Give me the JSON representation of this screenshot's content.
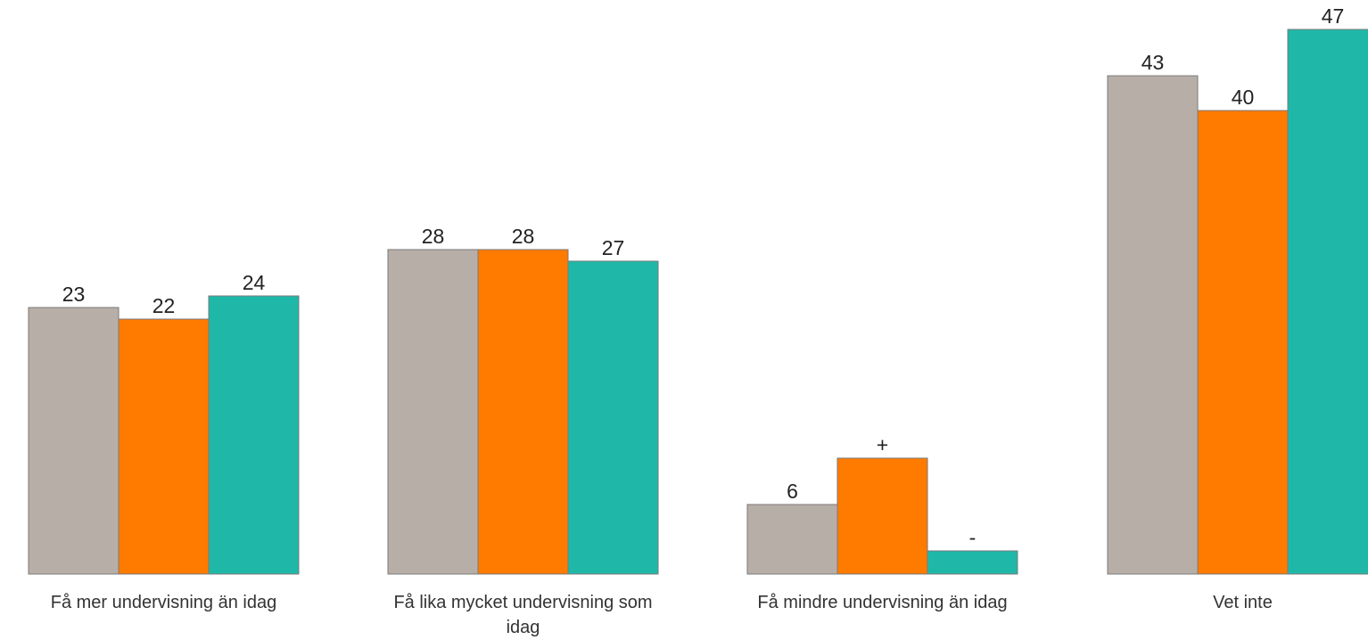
{
  "chart_data": {
    "type": "bar",
    "categories": [
      [
        "Få mer undervisning än idag"
      ],
      [
        "Få lika mycket undervisning som",
        "idag"
      ],
      [
        "Få mindre undervisning än idag"
      ],
      [
        "Vet inte"
      ]
    ],
    "series": [
      {
        "color": "#b8aea8",
        "values": [
          23,
          28,
          6,
          43
        ],
        "labels": [
          "23",
          "28",
          "6",
          "43"
        ]
      },
      {
        "color": "#ff7b00",
        "values": [
          22,
          28,
          10,
          40
        ],
        "labels": [
          "22",
          "28",
          "+",
          "40"
        ]
      },
      {
        "color": "#1fb8a8",
        "values": [
          24,
          27,
          2,
          47
        ],
        "labels": [
          "24",
          "27",
          "-",
          "47"
        ]
      }
    ],
    "title": "",
    "xlabel": "",
    "ylabel": "",
    "ylim": [
      0,
      50
    ],
    "grid": false,
    "legend": "none"
  }
}
